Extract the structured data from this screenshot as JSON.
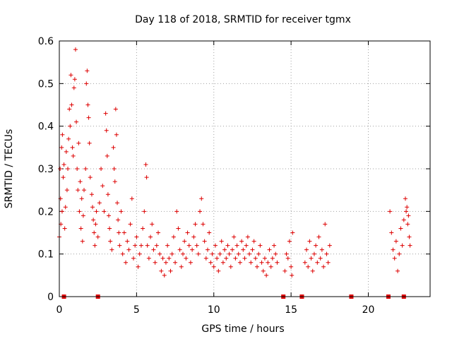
{
  "chart_data": {
    "type": "scatter",
    "title": "Day 118 of 2018, SRMTID for receiver tgmx",
    "xlabel": "GPS time / hours",
    "ylabel": "SRMTID / TECUs",
    "xlim": [
      0,
      24
    ],
    "ylim": [
      0,
      0.6
    ],
    "xticks": [
      "0",
      "5",
      "10",
      "15",
      "20"
    ],
    "yticks": [
      "0",
      "0.1",
      "0.2",
      "0.3",
      "0.4",
      "0.5",
      "0.6"
    ],
    "grid": true,
    "marker": "plus",
    "series": [
      {
        "name": "SRMTID",
        "color": "#dd0000",
        "points": [
          [
            0.0,
            0.14
          ],
          [
            0.05,
            0.3
          ],
          [
            0.08,
            0.23
          ],
          [
            0.1,
            0.17
          ],
          [
            0.15,
            0.35
          ],
          [
            0.18,
            0.2
          ],
          [
            0.2,
            0.38
          ],
          [
            0.25,
            0.28
          ],
          [
            0.3,
            0.31
          ],
          [
            0.35,
            0.16
          ],
          [
            0.4,
            0.21
          ],
          [
            0.45,
            0.34
          ],
          [
            0.5,
            0.25
          ],
          [
            0.55,
            0.3
          ],
          [
            0.6,
            0.37
          ],
          [
            0.65,
            0.44
          ],
          [
            0.7,
            0.4
          ],
          [
            0.75,
            0.52
          ],
          [
            0.8,
            0.45
          ],
          [
            0.85,
            0.35
          ],
          [
            0.9,
            0.33
          ],
          [
            0.95,
            0.49
          ],
          [
            1.0,
            0.51
          ],
          [
            1.05,
            0.58
          ],
          [
            1.1,
            0.41
          ],
          [
            1.15,
            0.3
          ],
          [
            1.2,
            0.25
          ],
          [
            1.25,
            0.36
          ],
          [
            1.3,
            0.2
          ],
          [
            1.35,
            0.27
          ],
          [
            1.4,
            0.16
          ],
          [
            1.45,
            0.23
          ],
          [
            1.5,
            0.13
          ],
          [
            1.55,
            0.19
          ],
          [
            1.6,
            0.25
          ],
          [
            1.7,
            0.3
          ],
          [
            1.75,
            0.5
          ],
          [
            1.8,
            0.53
          ],
          [
            1.85,
            0.45
          ],
          [
            1.9,
            0.42
          ],
          [
            1.95,
            0.36
          ],
          [
            2.0,
            0.28
          ],
          [
            2.1,
            0.24
          ],
          [
            2.15,
            0.21
          ],
          [
            2.2,
            0.18
          ],
          [
            2.25,
            0.15
          ],
          [
            2.3,
            0.12
          ],
          [
            2.35,
            0.17
          ],
          [
            2.4,
            0.2
          ],
          [
            2.5,
            0.14
          ],
          [
            2.6,
            0.22
          ],
          [
            2.7,
            0.3
          ],
          [
            2.8,
            0.26
          ],
          [
            2.9,
            0.2
          ],
          [
            3.0,
            0.43
          ],
          [
            3.05,
            0.39
          ],
          [
            3.1,
            0.33
          ],
          [
            3.15,
            0.24
          ],
          [
            3.2,
            0.19
          ],
          [
            3.25,
            0.16
          ],
          [
            3.3,
            0.13
          ],
          [
            3.4,
            0.11
          ],
          [
            3.5,
            0.35
          ],
          [
            3.55,
            0.3
          ],
          [
            3.6,
            0.27
          ],
          [
            3.65,
            0.44
          ],
          [
            3.7,
            0.38
          ],
          [
            3.75,
            0.22
          ],
          [
            3.8,
            0.18
          ],
          [
            3.85,
            0.15
          ],
          [
            3.9,
            0.12
          ],
          [
            4.0,
            0.2
          ],
          [
            4.1,
            0.1
          ],
          [
            4.2,
            0.15
          ],
          [
            4.3,
            0.08
          ],
          [
            4.4,
            0.13
          ],
          [
            4.5,
            0.11
          ],
          [
            4.6,
            0.17
          ],
          [
            4.7,
            0.23
          ],
          [
            4.8,
            0.09
          ],
          [
            4.9,
            0.12
          ],
          [
            5.0,
            0.14
          ],
          [
            5.1,
            0.07
          ],
          [
            5.2,
            0.1
          ],
          [
            5.3,
            0.12
          ],
          [
            5.4,
            0.16
          ],
          [
            5.5,
            0.2
          ],
          [
            5.6,
            0.31
          ],
          [
            5.65,
            0.28
          ],
          [
            5.7,
            0.12
          ],
          [
            5.8,
            0.09
          ],
          [
            5.9,
            0.14
          ],
          [
            6.0,
            0.17
          ],
          [
            6.1,
            0.11
          ],
          [
            6.2,
            0.08
          ],
          [
            6.3,
            0.12
          ],
          [
            6.4,
            0.15
          ],
          [
            6.5,
            0.1
          ],
          [
            6.6,
            0.06
          ],
          [
            6.7,
            0.09
          ],
          [
            6.8,
            0.05
          ],
          [
            6.9,
            0.08
          ],
          [
            7.0,
            0.12
          ],
          [
            7.1,
            0.09
          ],
          [
            7.2,
            0.06
          ],
          [
            7.3,
            0.1
          ],
          [
            7.4,
            0.14
          ],
          [
            7.5,
            0.08
          ],
          [
            7.6,
            0.2
          ],
          [
            7.7,
            0.16
          ],
          [
            7.8,
            0.11
          ],
          [
            7.9,
            0.07
          ],
          [
            8.0,
            0.1
          ],
          [
            8.1,
            0.13
          ],
          [
            8.2,
            0.09
          ],
          [
            8.3,
            0.15
          ],
          [
            8.4,
            0.12
          ],
          [
            8.5,
            0.08
          ],
          [
            8.6,
            0.11
          ],
          [
            8.7,
            0.14
          ],
          [
            8.8,
            0.17
          ],
          [
            8.9,
            0.12
          ],
          [
            9.0,
            0.1
          ],
          [
            9.1,
            0.2
          ],
          [
            9.2,
            0.23
          ],
          [
            9.3,
            0.17
          ],
          [
            9.4,
            0.13
          ],
          [
            9.5,
            0.09
          ],
          [
            9.6,
            0.11
          ],
          [
            9.7,
            0.15
          ],
          [
            9.8,
            0.08
          ],
          [
            9.9,
            0.1
          ],
          [
            10.0,
            0.07
          ],
          [
            10.1,
            0.12
          ],
          [
            10.2,
            0.09
          ],
          [
            10.3,
            0.06
          ],
          [
            10.4,
            0.1
          ],
          [
            10.5,
            0.13
          ],
          [
            10.6,
            0.08
          ],
          [
            10.7,
            0.11
          ],
          [
            10.8,
            0.09
          ],
          [
            10.9,
            0.12
          ],
          [
            11.0,
            0.1
          ],
          [
            11.1,
            0.07
          ],
          [
            11.2,
            0.11
          ],
          [
            11.3,
            0.14
          ],
          [
            11.4,
            0.09
          ],
          [
            11.5,
            0.12
          ],
          [
            11.6,
            0.1
          ],
          [
            11.7,
            0.08
          ],
          [
            11.8,
            0.13
          ],
          [
            11.9,
            0.11
          ],
          [
            12.0,
            0.09
          ],
          [
            12.1,
            0.12
          ],
          [
            12.2,
            0.14
          ],
          [
            12.3,
            0.1
          ],
          [
            12.4,
            0.08
          ],
          [
            12.5,
            0.11
          ],
          [
            12.6,
            0.13
          ],
          [
            12.7,
            0.09
          ],
          [
            12.8,
            0.07
          ],
          [
            12.9,
            0.1
          ],
          [
            13.0,
            0.12
          ],
          [
            13.1,
            0.08
          ],
          [
            13.2,
            0.06
          ],
          [
            13.3,
            0.09
          ],
          [
            13.4,
            0.05
          ],
          [
            13.5,
            0.08
          ],
          [
            13.6,
            0.11
          ],
          [
            13.7,
            0.07
          ],
          [
            13.8,
            0.09
          ],
          [
            13.9,
            0.12
          ],
          [
            14.0,
            0.1
          ],
          [
            14.1,
            0.08
          ],
          [
            14.6,
            0.06
          ],
          [
            14.7,
            0.1
          ],
          [
            14.8,
            0.09
          ],
          [
            14.9,
            0.13
          ],
          [
            15.0,
            0.07
          ],
          [
            15.05,
            0.05
          ],
          [
            15.1,
            0.15
          ],
          [
            15.9,
            0.08
          ],
          [
            16.0,
            0.11
          ],
          [
            16.1,
            0.07
          ],
          [
            16.2,
            0.13
          ],
          [
            16.3,
            0.09
          ],
          [
            16.4,
            0.06
          ],
          [
            16.5,
            0.1
          ],
          [
            16.6,
            0.12
          ],
          [
            16.7,
            0.08
          ],
          [
            16.8,
            0.14
          ],
          [
            16.9,
            0.09
          ],
          [
            17.0,
            0.11
          ],
          [
            17.1,
            0.07
          ],
          [
            17.2,
            0.17
          ],
          [
            17.3,
            0.1
          ],
          [
            17.4,
            0.08
          ],
          [
            17.5,
            0.12
          ],
          [
            21.4,
            0.2
          ],
          [
            21.5,
            0.15
          ],
          [
            21.6,
            0.11
          ],
          [
            21.7,
            0.09
          ],
          [
            21.8,
            0.13
          ],
          [
            21.9,
            0.06
          ],
          [
            22.0,
            0.1
          ],
          [
            22.1,
            0.16
          ],
          [
            22.2,
            0.12
          ],
          [
            22.3,
            0.18
          ],
          [
            22.4,
            0.23
          ],
          [
            22.45,
            0.2
          ],
          [
            22.5,
            0.21
          ],
          [
            22.55,
            0.17
          ],
          [
            22.6,
            0.19
          ],
          [
            22.65,
            0.14
          ],
          [
            22.7,
            0.12
          ]
        ]
      },
      {
        "name": "zero-level",
        "color": "#dd0000",
        "points": [
          [
            0.3,
            0.0
          ],
          [
            2.5,
            0.0
          ],
          [
            14.5,
            0.0
          ],
          [
            15.7,
            0.0
          ],
          [
            18.9,
            0.0
          ],
          [
            21.3,
            0.0
          ],
          [
            22.3,
            0.0
          ]
        ]
      }
    ]
  }
}
